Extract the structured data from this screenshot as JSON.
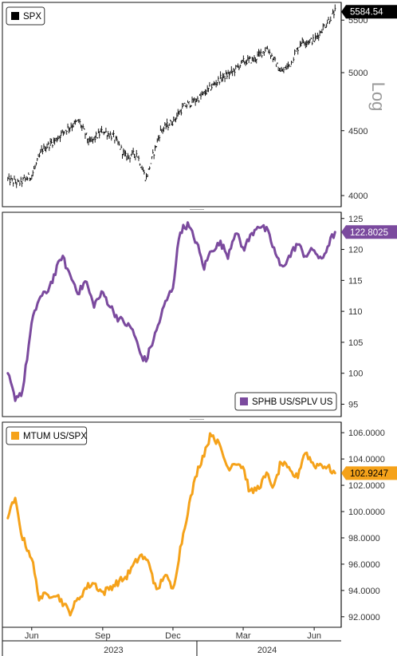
{
  "chart_data": [
    {
      "type": "ohlc",
      "legend": "SPX",
      "last_value_label": "5584.54",
      "scale": "log",
      "scale_label": "Log",
      "yticks": [
        4000,
        4500,
        5000,
        5500
      ],
      "ylim": [
        3920,
        5680
      ],
      "colors": {
        "series": "#000000",
        "badge_bg": "#000000",
        "badge_text": "#ffffff"
      },
      "x": [
        "2023-05-01",
        "2023-05-15",
        "2023-06-01",
        "2023-06-15",
        "2023-07-01",
        "2023-07-15",
        "2023-08-01",
        "2023-08-15",
        "2023-09-01",
        "2023-09-15",
        "2023-10-01",
        "2023-10-15",
        "2023-10-27",
        "2023-11-15",
        "2023-12-01",
        "2023-12-15",
        "2024-01-01",
        "2024-01-15",
        "2024-02-01",
        "2024-02-15",
        "2024-03-01",
        "2024-03-15",
        "2024-04-01",
        "2024-04-19",
        "2024-05-01",
        "2024-05-15",
        "2024-06-01",
        "2024-06-15",
        "2024-06-28"
      ],
      "values": [
        4120,
        4090,
        4150,
        4350,
        4420,
        4510,
        4580,
        4400,
        4500,
        4450,
        4290,
        4320,
        4120,
        4500,
        4580,
        4700,
        4760,
        4840,
        4950,
        5000,
        5100,
        5120,
        5230,
        5000,
        5080,
        5290,
        5300,
        5450,
        5584.54
      ]
    },
    {
      "type": "line",
      "legend": "SPHB US/SPLV US",
      "last_value_label": "122.8025",
      "yticks": [
        95,
        100,
        105,
        110,
        115,
        120,
        125
      ],
      "ylim": [
        93,
        126
      ],
      "colors": {
        "series": "#7b4a9e",
        "badge_bg": "#7b4a9e",
        "badge_text": "#ffffff"
      },
      "x": [
        "2023-05-01",
        "2023-05-10",
        "2023-05-20",
        "2023-06-01",
        "2023-06-10",
        "2023-06-20",
        "2023-07-01",
        "2023-07-10",
        "2023-07-20",
        "2023-08-01",
        "2023-08-10",
        "2023-08-20",
        "2023-09-01",
        "2023-09-10",
        "2023-09-20",
        "2023-10-01",
        "2023-10-10",
        "2023-10-20",
        "2023-10-27",
        "2023-11-10",
        "2023-11-20",
        "2023-12-01",
        "2023-12-10",
        "2023-12-20",
        "2024-01-01",
        "2024-01-10",
        "2024-01-20",
        "2024-02-01",
        "2024-02-10",
        "2024-02-20",
        "2024-03-01",
        "2024-03-10",
        "2024-03-20",
        "2024-04-01",
        "2024-04-10",
        "2024-04-19",
        "2024-05-01",
        "2024-05-10",
        "2024-05-20",
        "2024-06-01",
        "2024-06-10",
        "2024-06-20",
        "2024-06-28"
      ],
      "values": [
        100,
        96,
        97,
        108,
        112,
        113,
        116,
        119,
        116,
        113,
        115,
        111,
        113,
        111,
        109,
        108,
        107,
        103,
        102,
        107,
        111,
        114,
        123,
        124,
        121,
        117,
        120,
        121,
        119,
        123,
        120,
        122,
        124,
        123,
        120,
        117,
        119,
        121,
        119,
        120,
        118,
        121,
        122.8025
      ]
    },
    {
      "type": "line",
      "legend": "MTUM US/SPX",
      "last_value_label": "102.9247",
      "yticks": [
        92,
        94,
        96,
        98,
        100,
        102,
        104,
        106
      ],
      "ylim": [
        91.2,
        106.8
      ],
      "colors": {
        "series": "#f5a21a",
        "badge_bg": "#f5a21a",
        "badge_text": "#000000"
      },
      "x": [
        "2023-05-01",
        "2023-05-10",
        "2023-05-20",
        "2023-06-01",
        "2023-06-10",
        "2023-06-20",
        "2023-07-01",
        "2023-07-10",
        "2023-07-20",
        "2023-08-01",
        "2023-08-10",
        "2023-08-20",
        "2023-09-01",
        "2023-09-10",
        "2023-09-20",
        "2023-10-01",
        "2023-10-10",
        "2023-10-20",
        "2023-11-01",
        "2023-11-10",
        "2023-11-20",
        "2023-12-01",
        "2023-12-10",
        "2023-12-20",
        "2024-01-01",
        "2024-01-10",
        "2024-01-20",
        "2024-02-01",
        "2024-02-10",
        "2024-02-20",
        "2024-03-01",
        "2024-03-10",
        "2024-03-20",
        "2024-04-01",
        "2024-04-10",
        "2024-04-19",
        "2024-05-01",
        "2024-05-10",
        "2024-05-20",
        "2024-06-01",
        "2024-06-10",
        "2024-06-20",
        "2024-06-28"
      ],
      "values": [
        99.5,
        101,
        98,
        96.5,
        93.5,
        93.6,
        93.8,
        93.2,
        92.3,
        93.4,
        94.2,
        94.6,
        93.8,
        94.2,
        94.6,
        95.0,
        95.8,
        96.7,
        96.0,
        93.8,
        95.3,
        94.0,
        97.0,
        100.0,
        103.0,
        104.4,
        106.0,
        104.8,
        103.3,
        103.8,
        103.4,
        101.4,
        101.8,
        102.8,
        101.8,
        103.8,
        103.0,
        102.6,
        104.6,
        103.5,
        103.6,
        103.3,
        102.9247
      ]
    }
  ],
  "x_axis": {
    "months": [
      {
        "label": "Jun",
        "date": "2023-06-01"
      },
      {
        "label": "Sep",
        "date": "2023-09-01"
      },
      {
        "label": "Dec",
        "date": "2023-12-01"
      },
      {
        "label": "Mar",
        "date": "2024-03-01"
      },
      {
        "label": "Jun",
        "date": "2024-06-01"
      }
    ],
    "years": [
      {
        "label": "2023",
        "date": "2023-09-15"
      },
      {
        "label": "2024",
        "date": "2024-04-01"
      }
    ],
    "start": "2023-04-24",
    "end": "2024-07-06"
  }
}
